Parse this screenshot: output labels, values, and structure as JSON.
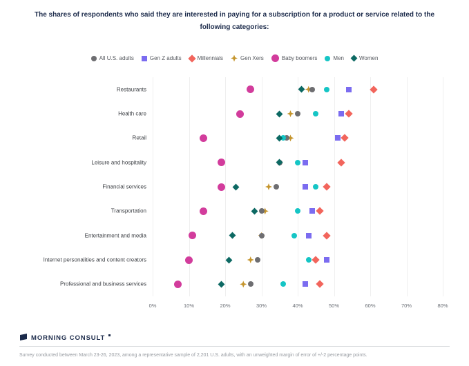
{
  "title": "The shares of respondents who said they are interested in paying for a subscription for a product or service related to the following categories:",
  "footer": {
    "logo_text": "MORNING CONSULT",
    "footnote": "Survey conducted between March 23-26, 2023, among a representative sample of 2,201 U.S. adults, with an unweighted margin of error of +/-2 percentage points."
  },
  "colors": {
    "title_navy": "#1b2a4a",
    "all_adults_gray": "#6e6e71",
    "gen_z_purple": "#7b6cf0",
    "millennials_coral": "#f2655c",
    "gen_x_gold": "#c5952d",
    "baby_boomers_magenta": "#d23c9c",
    "men_teal": "#15c5c5",
    "women_dark_teal": "#0d6963"
  },
  "chart_data": {
    "type": "scatter",
    "subtype": "dot-plot",
    "grid": "vertical-light",
    "legend_position": "top-center",
    "xlim": [
      0,
      80
    ],
    "x_ticks": [
      0,
      10,
      20,
      30,
      40,
      50,
      60,
      70,
      80
    ],
    "x_tick_suffix": "%",
    "categories": [
      "Restaurants",
      "Health care",
      "Retail",
      "Leisure and hospitality",
      "Financial services",
      "Transportation",
      "Entertainment and media",
      "Internet personalities and content creators",
      "Professional and business services"
    ],
    "series": [
      {
        "name": "All U.S. adults",
        "shape": "circle",
        "color": "#6e6e71",
        "size": 8,
        "values": [
          44,
          40,
          37,
          35,
          34,
          30,
          30,
          29,
          27
        ]
      },
      {
        "name": "Gen Z adults",
        "shape": "square",
        "color": "#7b6cf0",
        "size": 8,
        "values": [
          54,
          52,
          51,
          42,
          42,
          44,
          43,
          48,
          42
        ]
      },
      {
        "name": "Millennials",
        "shape": "diamond",
        "color": "#f2655c",
        "size": 8,
        "values": [
          61,
          54,
          53,
          52,
          48,
          46,
          48,
          45,
          46
        ]
      },
      {
        "name": "Gen Xers",
        "shape": "star4",
        "color": "#c5952d",
        "size": 10,
        "values": [
          43,
          38,
          38,
          35,
          32,
          31,
          30,
          27,
          25
        ]
      },
      {
        "name": "Baby boomers",
        "shape": "circle",
        "color": "#d23c9c",
        "size": 11,
        "values": [
          27,
          24,
          14,
          19,
          19,
          14,
          11,
          10,
          7
        ]
      },
      {
        "name": "Men",
        "shape": "circle",
        "color": "#15c5c5",
        "size": 8,
        "values": [
          48,
          45,
          36,
          40,
          45,
          40,
          39,
          43,
          36
        ]
      },
      {
        "name": "Women",
        "shape": "diamond",
        "color": "#0d6963",
        "size": 7,
        "values": [
          41,
          35,
          35,
          35,
          23,
          28,
          22,
          21,
          19
        ]
      }
    ]
  }
}
